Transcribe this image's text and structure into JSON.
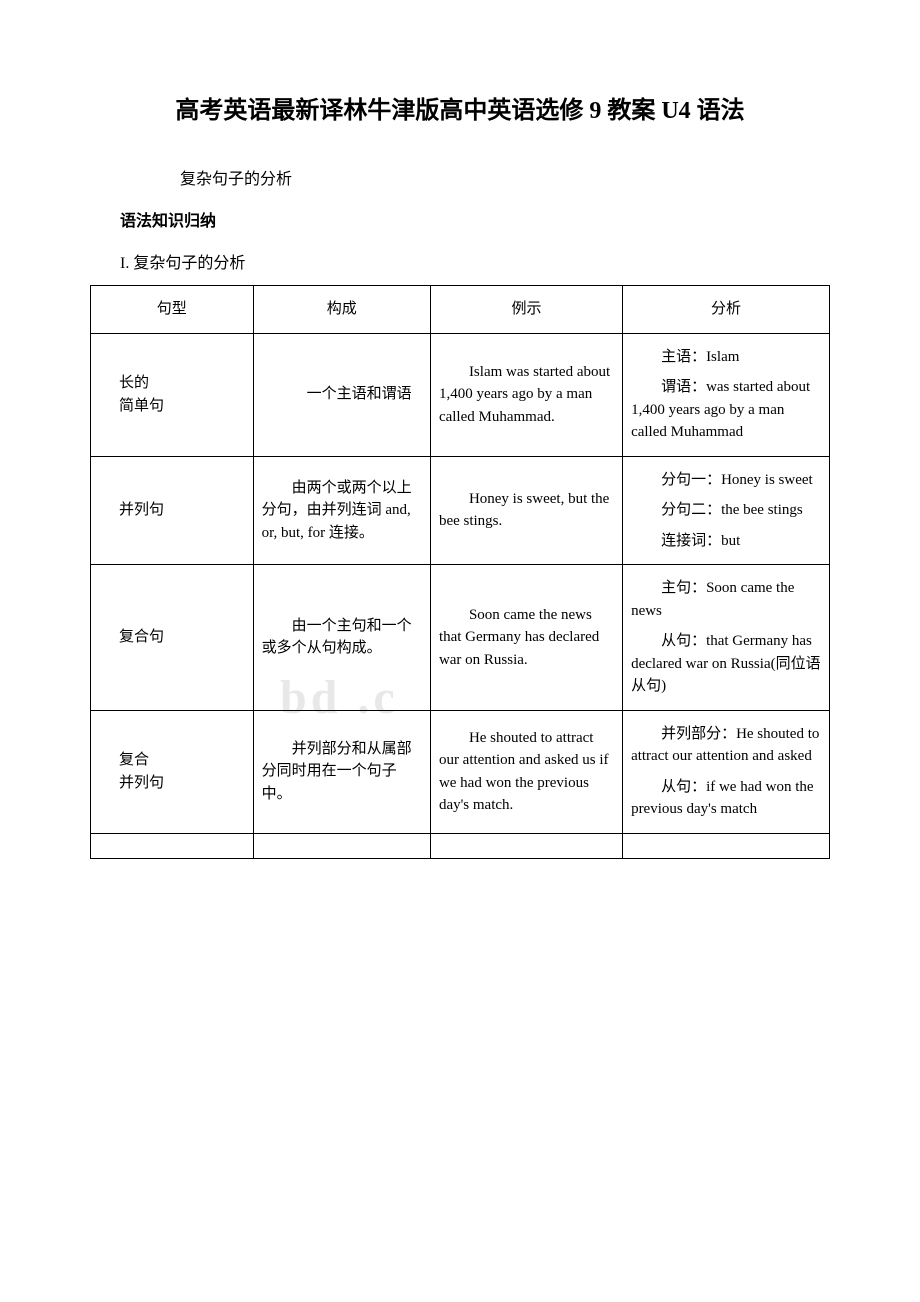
{
  "title": "高考英语最新译林牛津版高中英语选修 9 教案 U4 语法",
  "subtitle": "复杂句子的分析",
  "section_heading": "语法知识归纳",
  "section_sub": "I. 复杂句子的分析",
  "table": {
    "headers": [
      "句型",
      "构成",
      "例示",
      "分析"
    ],
    "rows": [
      {
        "type_lines": [
          "长的",
          "简单句"
        ],
        "structure": "一个主语和谓语",
        "structure_indent": "3em",
        "example": "Islam was started about 1,400 years ago by a man called Muhammad.",
        "analysis": [
          "主语：Islam",
          "谓语：was started about 1,400 years ago by a man called Muhammad"
        ]
      },
      {
        "type_lines": [
          "并列句"
        ],
        "structure": "由两个或两个以上分句，由并列连词 and, or, but, for 连接。",
        "structure_indent": "2em",
        "example": "Honey is sweet, but the bee stings.",
        "analysis": [
          "分句一：Honey is sweet",
          "分句二：the bee stings",
          "连接词：but"
        ]
      },
      {
        "type_lines": [
          "复合句"
        ],
        "structure": "由一个主句和一个或多个从句构成。",
        "structure_indent": "2em",
        "example": "Soon came the news that Germany has declared war on Russia.",
        "analysis": [
          "主句：Soon came the news",
          "从句：that Germany has declared war on Russia(同位语从句)"
        ]
      },
      {
        "type_lines": [
          "复合",
          "并列句"
        ],
        "structure": "并列部分和从属部分同时用在一个句子中。",
        "structure_indent": "2em",
        "example": "He shouted to attract our attention and asked us if we had won the previous day's match.",
        "analysis": [
          "并列部分：He shouted to attract our attention and asked",
          "从句：if we had won the previous day's match"
        ]
      }
    ]
  },
  "watermark": "bd     .c",
  "colors": {
    "text": "#000000",
    "background": "#ffffff",
    "border": "#000000",
    "watermark": "#e8e8e8"
  }
}
